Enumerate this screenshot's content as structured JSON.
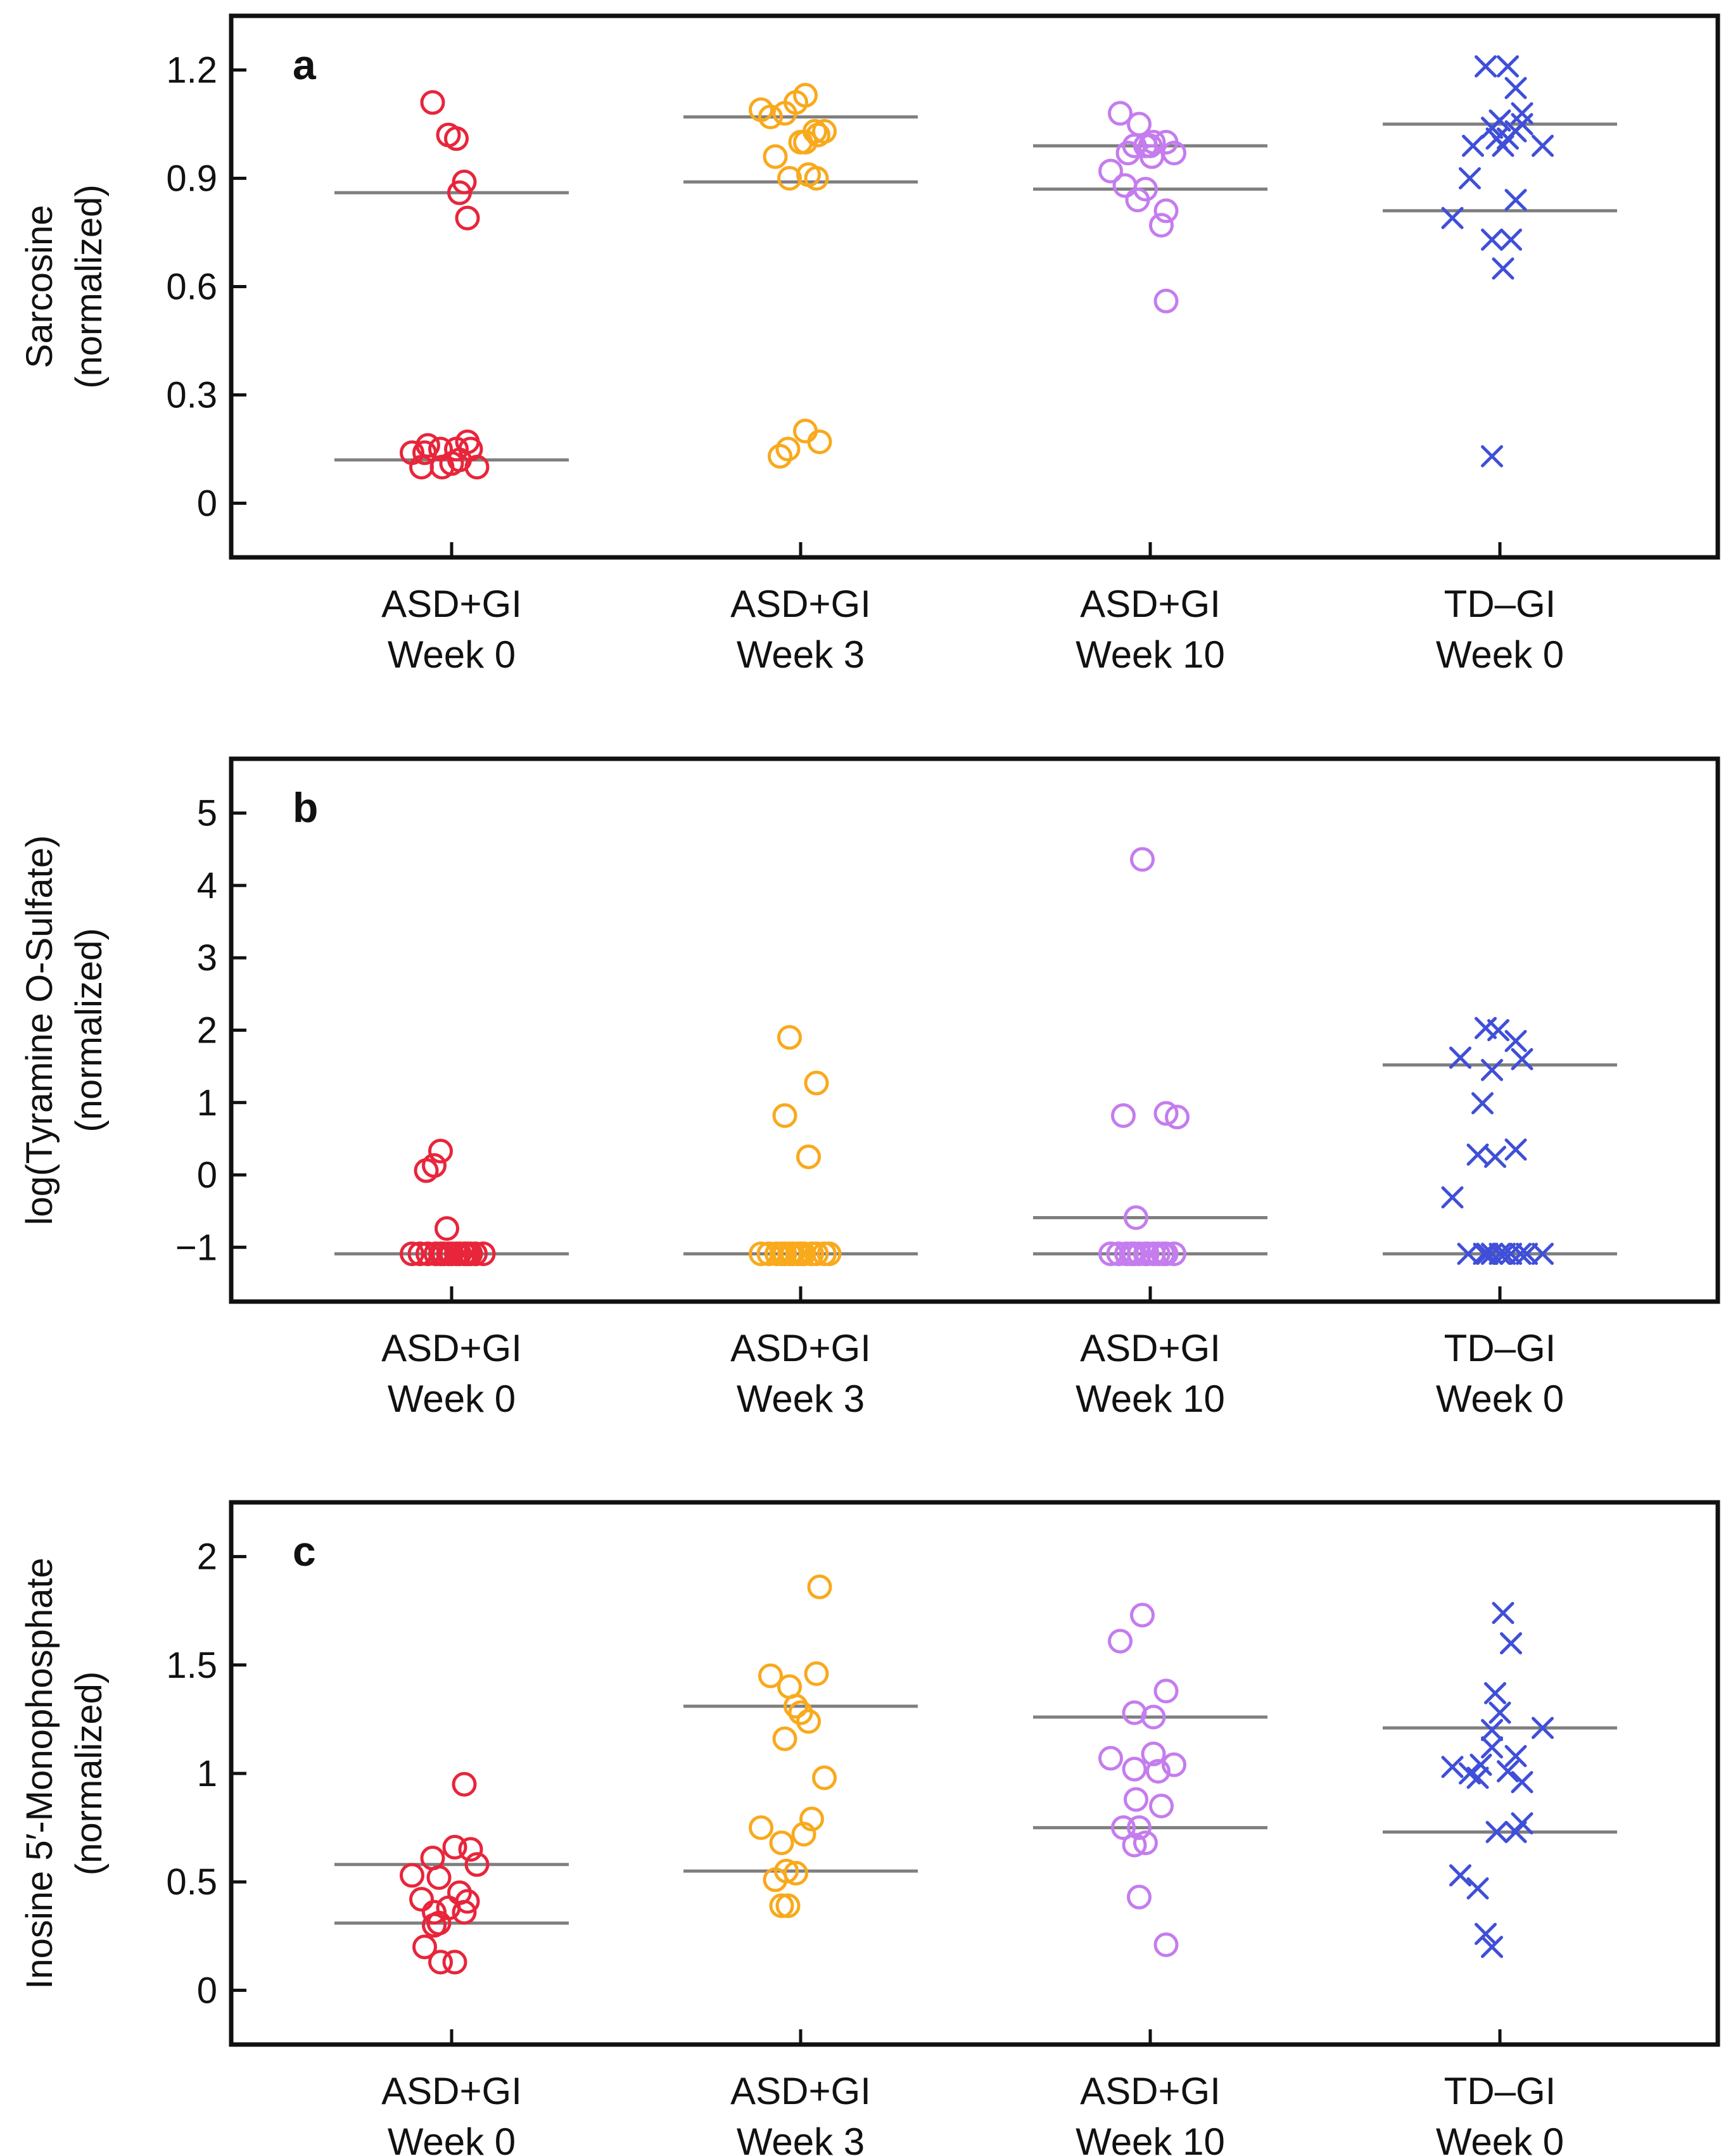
{
  "figure": {
    "line_color": "#7f7f7f",
    "frame_color": "#111111"
  },
  "groups": [
    {
      "line1": "ASD+GI",
      "line2": "Week 0",
      "color": "#e8253a",
      "marker": "circle"
    },
    {
      "line1": "ASD+GI",
      "line2": "Week 3",
      "color": "#f9a91c",
      "marker": "circle"
    },
    {
      "line1": "ASD+GI",
      "line2": "Week 10",
      "color": "#c57cee",
      "marker": "circle"
    },
    {
      "line1": "TD–GI",
      "line2": "Week 0",
      "color": "#3f4fd8",
      "marker": "x"
    }
  ],
  "chart_data": [
    {
      "type": "scatter",
      "panel": "a",
      "ylabel": [
        "Sarcosine",
        "(normalized)"
      ],
      "ylim": [
        -0.15,
        1.35
      ],
      "yticks": [
        0,
        0.3,
        0.6,
        0.9,
        1.2
      ],
      "ytick_labels": [
        "0",
        "0.3",
        "0.6",
        "0.9",
        "1.2"
      ],
      "categories": [
        "ASD+GI Week 0",
        "ASD+GI Week 3",
        "ASD+GI Week 10",
        "TD–GI Week 0"
      ],
      "series": [
        {
          "name": "ASD+GI Week 0",
          "points": [
            [
              -0.12,
              1.11
            ],
            [
              -0.02,
              1.02
            ],
            [
              0.03,
              1.01
            ],
            [
              0.08,
              0.89
            ],
            [
              0.05,
              0.86
            ],
            [
              0.1,
              0.79
            ],
            [
              -0.25,
              0.14
            ],
            [
              -0.17,
              0.14
            ],
            [
              -0.15,
              0.16
            ],
            [
              -0.19,
              0.1
            ],
            [
              -0.07,
              0.15
            ],
            [
              -0.06,
              0.1
            ],
            [
              0.0,
              0.11
            ],
            [
              0.03,
              0.15
            ],
            [
              0.05,
              0.12
            ],
            [
              0.1,
              0.17
            ],
            [
              0.12,
              0.15
            ],
            [
              0.16,
              0.1
            ]
          ],
          "medians": [
            0.86,
            0.12
          ]
        },
        {
          "name": "ASD+GI Week 3",
          "points": [
            [
              -0.25,
              1.09
            ],
            [
              -0.19,
              1.07
            ],
            [
              -0.1,
              1.08
            ],
            [
              -0.03,
              1.11
            ],
            [
              0.03,
              1.13
            ],
            [
              -0.16,
              0.96
            ],
            [
              0.0,
              1.0
            ],
            [
              0.03,
              1.0
            ],
            [
              0.09,
              1.03
            ],
            [
              0.11,
              1.02
            ],
            [
              0.15,
              1.03
            ],
            [
              -0.07,
              0.9
            ],
            [
              0.05,
              0.91
            ],
            [
              0.1,
              0.9
            ],
            [
              -0.13,
              0.13
            ],
            [
              -0.08,
              0.15
            ],
            [
              0.03,
              0.2
            ],
            [
              0.12,
              0.17
            ]
          ],
          "medians": [
            1.07,
            0.89
          ]
        },
        {
          "name": "ASD+GI Week 10",
          "points": [
            [
              -0.19,
              1.08
            ],
            [
              -0.07,
              1.05
            ],
            [
              -0.14,
              0.97
            ],
            [
              -0.1,
              0.99
            ],
            [
              -0.03,
              0.99
            ],
            [
              0.0,
              0.99
            ],
            [
              0.02,
              1.0
            ],
            [
              0.1,
              1.0
            ],
            [
              0.01,
              0.96
            ],
            [
              0.15,
              0.97
            ],
            [
              -0.25,
              0.92
            ],
            [
              -0.16,
              0.88
            ],
            [
              -0.03,
              0.87
            ],
            [
              -0.08,
              0.84
            ],
            [
              0.1,
              0.81
            ],
            [
              0.07,
              0.77
            ],
            [
              0.1,
              0.56
            ]
          ],
          "medians": [
            0.99,
            0.87
          ]
        },
        {
          "name": "TD–GI Week 0",
          "points": [
            [
              -0.09,
              1.21
            ],
            [
              0.05,
              1.21
            ],
            [
              0.1,
              1.15
            ],
            [
              0.14,
              1.08
            ],
            [
              -0.17,
              0.99
            ],
            [
              -0.05,
              1.04
            ],
            [
              -0.02,
              1.01
            ],
            [
              0.05,
              1.01
            ],
            [
              0.1,
              1.03
            ],
            [
              0.0,
              1.06
            ],
            [
              0.02,
              0.99
            ],
            [
              0.14,
              1.05
            ],
            [
              0.27,
              0.99
            ],
            [
              -0.3,
              0.79
            ],
            [
              -0.19,
              0.9
            ],
            [
              -0.05,
              0.73
            ],
            [
              0.02,
              0.65
            ],
            [
              0.07,
              0.73
            ],
            [
              0.1,
              0.84
            ],
            [
              -0.05,
              0.13
            ]
          ],
          "medians": [
            1.05,
            0.81
          ]
        }
      ]
    },
    {
      "type": "scatter",
      "panel": "b",
      "ylabel": [
        "log(Tyramine O-Sulfate)",
        "(normalized)"
      ],
      "ylim": [
        -1.75,
        5.75
      ],
      "yticks": [
        -1,
        0,
        1,
        2,
        3,
        4,
        5
      ],
      "ytick_labels": [
        "−1",
        "0",
        "1",
        "2",
        "3",
        "4",
        "5"
      ],
      "categories": [
        "ASD+GI Week 0",
        "ASD+GI Week 3",
        "ASD+GI Week 10",
        "TD–GI Week 0"
      ],
      "series": [
        {
          "name": "ASD+GI Week 0",
          "points": [
            [
              -0.16,
              0.06
            ],
            [
              -0.11,
              0.13
            ],
            [
              -0.07,
              0.33
            ],
            [
              -0.03,
              -0.74
            ],
            [
              -0.25,
              -1.09
            ],
            [
              -0.2,
              -1.09
            ],
            [
              -0.15,
              -1.09
            ],
            [
              -0.1,
              -1.09
            ],
            [
              -0.07,
              -1.09
            ],
            [
              -0.05,
              -1.09
            ],
            [
              -0.02,
              -1.09
            ],
            [
              0.0,
              -1.09
            ],
            [
              0.03,
              -1.09
            ],
            [
              0.05,
              -1.09
            ],
            [
              0.08,
              -1.09
            ],
            [
              0.1,
              -1.09
            ],
            [
              0.12,
              -1.09
            ],
            [
              0.15,
              -1.09
            ],
            [
              0.2,
              -1.09
            ]
          ],
          "medians": [
            -1.09
          ]
        },
        {
          "name": "ASD+GI Week 3",
          "points": [
            [
              -0.07,
              1.9
            ],
            [
              -0.1,
              0.82
            ],
            [
              0.1,
              1.27
            ],
            [
              0.05,
              0.25
            ],
            [
              -0.25,
              -1.09
            ],
            [
              -0.2,
              -1.09
            ],
            [
              -0.15,
              -1.09
            ],
            [
              -0.12,
              -1.09
            ],
            [
              -0.1,
              -1.09
            ],
            [
              -0.07,
              -1.09
            ],
            [
              -0.05,
              -1.09
            ],
            [
              -0.02,
              -1.09
            ],
            [
              0.0,
              -1.09
            ],
            [
              0.02,
              -1.09
            ],
            [
              0.07,
              -1.09
            ],
            [
              0.1,
              -1.09
            ],
            [
              0.15,
              -1.09
            ],
            [
              0.18,
              -1.09
            ]
          ],
          "medians": [
            -1.09
          ]
        },
        {
          "name": "ASD+GI Week 10",
          "points": [
            [
              -0.05,
              4.36
            ],
            [
              -0.17,
              0.82
            ],
            [
              0.1,
              0.85
            ],
            [
              0.17,
              0.8
            ],
            [
              -0.09,
              -0.59
            ],
            [
              -0.25,
              -1.09
            ],
            [
              -0.2,
              -1.09
            ],
            [
              -0.15,
              -1.09
            ],
            [
              -0.12,
              -1.09
            ],
            [
              -0.1,
              -1.09
            ],
            [
              -0.07,
              -1.09
            ],
            [
              -0.03,
              -1.09
            ],
            [
              -0.02,
              -1.09
            ],
            [
              0.02,
              -1.09
            ],
            [
              0.05,
              -1.09
            ],
            [
              0.08,
              -1.09
            ],
            [
              0.1,
              -1.09
            ],
            [
              0.15,
              -1.09
            ]
          ],
          "medians": [
            -0.59,
            -1.09
          ]
        },
        {
          "name": "TD–GI Week 0",
          "points": [
            [
              -0.09,
              2.03
            ],
            [
              -0.01,
              2.0
            ],
            [
              0.1,
              1.85
            ],
            [
              0.14,
              1.6
            ],
            [
              -0.25,
              1.62
            ],
            [
              -0.05,
              1.45
            ],
            [
              -0.11,
              0.99
            ],
            [
              -0.14,
              0.28
            ],
            [
              0.1,
              0.35
            ],
            [
              -0.03,
              0.25
            ],
            [
              -0.3,
              -0.31
            ],
            [
              -0.2,
              -1.09
            ],
            [
              -0.1,
              -1.09
            ],
            [
              -0.08,
              -1.09
            ],
            [
              -0.05,
              -1.09
            ],
            [
              0.0,
              -1.09
            ],
            [
              0.03,
              -1.09
            ],
            [
              0.07,
              -1.09
            ],
            [
              0.13,
              -1.09
            ],
            [
              0.17,
              -1.09
            ],
            [
              0.27,
              -1.09
            ]
          ],
          "medians": [
            1.52,
            -1.09
          ]
        }
      ]
    },
    {
      "type": "scatter",
      "panel": "c",
      "ylabel": [
        "Inosine 5′-Monophosphate",
        "(normalized)"
      ],
      "ylim": [
        -0.25,
        2.25
      ],
      "yticks": [
        0,
        0.5,
        1,
        1.5,
        2
      ],
      "ytick_labels": [
        "0",
        "0.5",
        "1",
        "1.5",
        "2"
      ],
      "categories": [
        "ASD+GI Week 0",
        "ASD+GI Week 3",
        "ASD+GI Week 10",
        "TD–GI Week 0"
      ],
      "series": [
        {
          "name": "ASD+GI Week 0",
          "points": [
            [
              0.08,
              0.95
            ],
            [
              0.02,
              0.66
            ],
            [
              0.12,
              0.65
            ],
            [
              -0.12,
              0.61
            ],
            [
              0.16,
              0.58
            ],
            [
              -0.25,
              0.53
            ],
            [
              -0.08,
              0.52
            ],
            [
              -0.19,
              0.42
            ],
            [
              0.05,
              0.45
            ],
            [
              0.1,
              0.41
            ],
            [
              -0.02,
              0.38
            ],
            [
              -0.11,
              0.36
            ],
            [
              0.08,
              0.36
            ],
            [
              -0.11,
              0.3
            ],
            [
              -0.08,
              0.31
            ],
            [
              -0.17,
              0.2
            ],
            [
              -0.07,
              0.13
            ],
            [
              0.02,
              0.13
            ]
          ],
          "medians": [
            0.58,
            0.31
          ]
        },
        {
          "name": "ASD+GI Week 3",
          "points": [
            [
              0.12,
              1.86
            ],
            [
              -0.19,
              1.45
            ],
            [
              -0.07,
              1.4
            ],
            [
              -0.03,
              1.31
            ],
            [
              0.1,
              1.46
            ],
            [
              0.0,
              1.28
            ],
            [
              0.05,
              1.24
            ],
            [
              -0.1,
              1.16
            ],
            [
              0.15,
              0.98
            ],
            [
              -0.25,
              0.75
            ],
            [
              -0.12,
              0.68
            ],
            [
              0.07,
              0.79
            ],
            [
              0.02,
              0.72
            ],
            [
              -0.16,
              0.51
            ],
            [
              -0.09,
              0.55
            ],
            [
              -0.03,
              0.54
            ],
            [
              -0.12,
              0.39
            ],
            [
              -0.08,
              0.39
            ]
          ],
          "medians": [
            1.31,
            0.55
          ]
        },
        {
          "name": "ASD+GI Week 10",
          "points": [
            [
              -0.05,
              1.73
            ],
            [
              -0.19,
              1.61
            ],
            [
              0.1,
              1.38
            ],
            [
              -0.1,
              1.28
            ],
            [
              0.02,
              1.26
            ],
            [
              -0.25,
              1.07
            ],
            [
              0.02,
              1.09
            ],
            [
              -0.1,
              1.02
            ],
            [
              0.05,
              1.01
            ],
            [
              0.15,
              1.04
            ],
            [
              -0.09,
              0.88
            ],
            [
              0.07,
              0.85
            ],
            [
              -0.17,
              0.75
            ],
            [
              -0.07,
              0.75
            ],
            [
              -0.1,
              0.67
            ],
            [
              -0.03,
              0.68
            ],
            [
              -0.07,
              0.43
            ],
            [
              0.1,
              0.21
            ]
          ],
          "medians": [
            1.26,
            0.75
          ]
        },
        {
          "name": "TD–GI Week 0",
          "points": [
            [
              0.02,
              1.74
            ],
            [
              0.07,
              1.6
            ],
            [
              -0.03,
              1.37
            ],
            [
              -0.05,
              1.2
            ],
            [
              0.0,
              1.28
            ],
            [
              -0.3,
              1.03
            ],
            [
              -0.19,
              1.0
            ],
            [
              -0.14,
              0.98
            ],
            [
              -0.05,
              1.12
            ],
            [
              -0.12,
              1.04
            ],
            [
              0.05,
              1.01
            ],
            [
              0.1,
              1.08
            ],
            [
              0.14,
              0.96
            ],
            [
              0.27,
              1.21
            ],
            [
              -0.25,
              0.53
            ],
            [
              -0.02,
              0.73
            ],
            [
              0.1,
              0.73
            ],
            [
              0.14,
              0.77
            ],
            [
              -0.14,
              0.47
            ],
            [
              -0.09,
              0.26
            ],
            [
              -0.05,
              0.2
            ]
          ],
          "medians": [
            1.21,
            0.73
          ]
        }
      ]
    }
  ]
}
